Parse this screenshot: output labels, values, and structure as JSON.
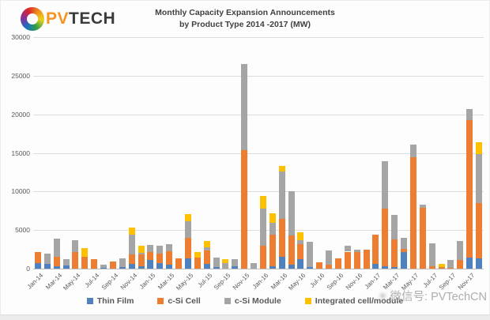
{
  "header": {
    "logo_pv": "PV",
    "logo_tech": "TECH",
    "title_line1": "Monthly Capacity Expansion Announcements",
    "title_line2": "by Product Type 2014 -2017 (MW)"
  },
  "watermark": {
    "text": "微信号: PVTechCN"
  },
  "chart_data": {
    "type": "bar",
    "stacked": true,
    "title": "Monthly Capacity Expansion Announcements by Product Type 2014 -2017 (MW)",
    "xlabel": "",
    "ylabel": "",
    "ylim": [
      0,
      30000
    ],
    "yticks": [
      0,
      5000,
      10000,
      15000,
      20000,
      25000,
      30000
    ],
    "grid": true,
    "legend_position": "bottom",
    "xtick_step": 2,
    "categories": [
      "Jan-14",
      "Feb-14",
      "Mar-14",
      "Apr-14",
      "May-14",
      "Jun-14",
      "Jul-14",
      "Aug-14",
      "Sep-14",
      "Oct-14",
      "Nov-14",
      "Dec-14",
      "Jan-15",
      "Feb-15",
      "Mar-15",
      "Apr-15",
      "May-15",
      "Jun-15",
      "Jul-15",
      "Aug-15",
      "Sep-15",
      "Oct-15",
      "Nov-15",
      "Dec-15",
      "Jan-16",
      "Feb-16",
      "Mar-16",
      "Apr-16",
      "May-16",
      "Jun-16",
      "Jul-16",
      "Aug-16",
      "Sep-16",
      "Oct-16",
      "Nov-16",
      "Dec-16",
      "Jan-17",
      "Feb-17",
      "Mar-17",
      "Apr-17",
      "May-17",
      "Jun-17",
      "Jul-17",
      "Aug-17",
      "Sep-17",
      "Oct-17",
      "Nov-17",
      "Dec-17"
    ],
    "series": [
      {
        "name": "Thin Film",
        "color": "#4e81bd",
        "values": [
          700,
          600,
          300,
          400,
          0,
          0,
          0,
          100,
          0,
          200,
          600,
          300,
          1100,
          700,
          500,
          0,
          1300,
          0,
          600,
          200,
          0,
          300,
          0,
          0,
          0,
          300,
          1500,
          500,
          1200,
          200,
          0,
          0,
          0,
          0,
          0,
          0,
          600,
          300,
          200,
          2200,
          0,
          0,
          0,
          0,
          0,
          0,
          1400,
          1300
        ]
      },
      {
        "name": "c-Si Cell",
        "color": "#ed7d31",
        "values": [
          1500,
          0,
          1200,
          0,
          2200,
          1500,
          1200,
          0,
          900,
          0,
          1200,
          1500,
          1000,
          1200,
          1800,
          1300,
          2700,
          1400,
          1800,
          0,
          0,
          0,
          15400,
          0,
          3000,
          4100,
          4900,
          3800,
          2000,
          0,
          800,
          500,
          1300,
          2200,
          2200,
          2500,
          3800,
          7500,
          3600,
          400,
          14400,
          7900,
          300,
          200,
          100,
          1100,
          17800,
          7200
        ]
      },
      {
        "name": "c-Si Module",
        "color": "#a5a5a5",
        "values": [
          0,
          1300,
          2400,
          800,
          1500,
          0,
          0,
          400,
          0,
          1100,
          2600,
          200,
          1000,
          1100,
          900,
          0,
          2100,
          0,
          400,
          1200,
          700,
          900,
          11100,
          700,
          4800,
          1500,
          6200,
          5700,
          500,
          3300,
          0,
          1900,
          0,
          800,
          300,
          0,
          0,
          6100,
          3200,
          1400,
          1700,
          400,
          3000,
          0,
          1000,
          2500,
          1500,
          6300
        ]
      },
      {
        "name": "Integrated cell/module",
        "color": "#ffc000",
        "values": [
          0,
          0,
          0,
          0,
          0,
          1200,
          0,
          0,
          0,
          0,
          900,
          1000,
          0,
          0,
          0,
          0,
          1000,
          800,
          800,
          0,
          500,
          0,
          0,
          0,
          1600,
          1300,
          700,
          0,
          1000,
          0,
          0,
          0,
          0,
          0,
          0,
          0,
          0,
          0,
          0,
          0,
          0,
          0,
          0,
          400,
          0,
          0,
          0,
          1600
        ]
      }
    ]
  }
}
